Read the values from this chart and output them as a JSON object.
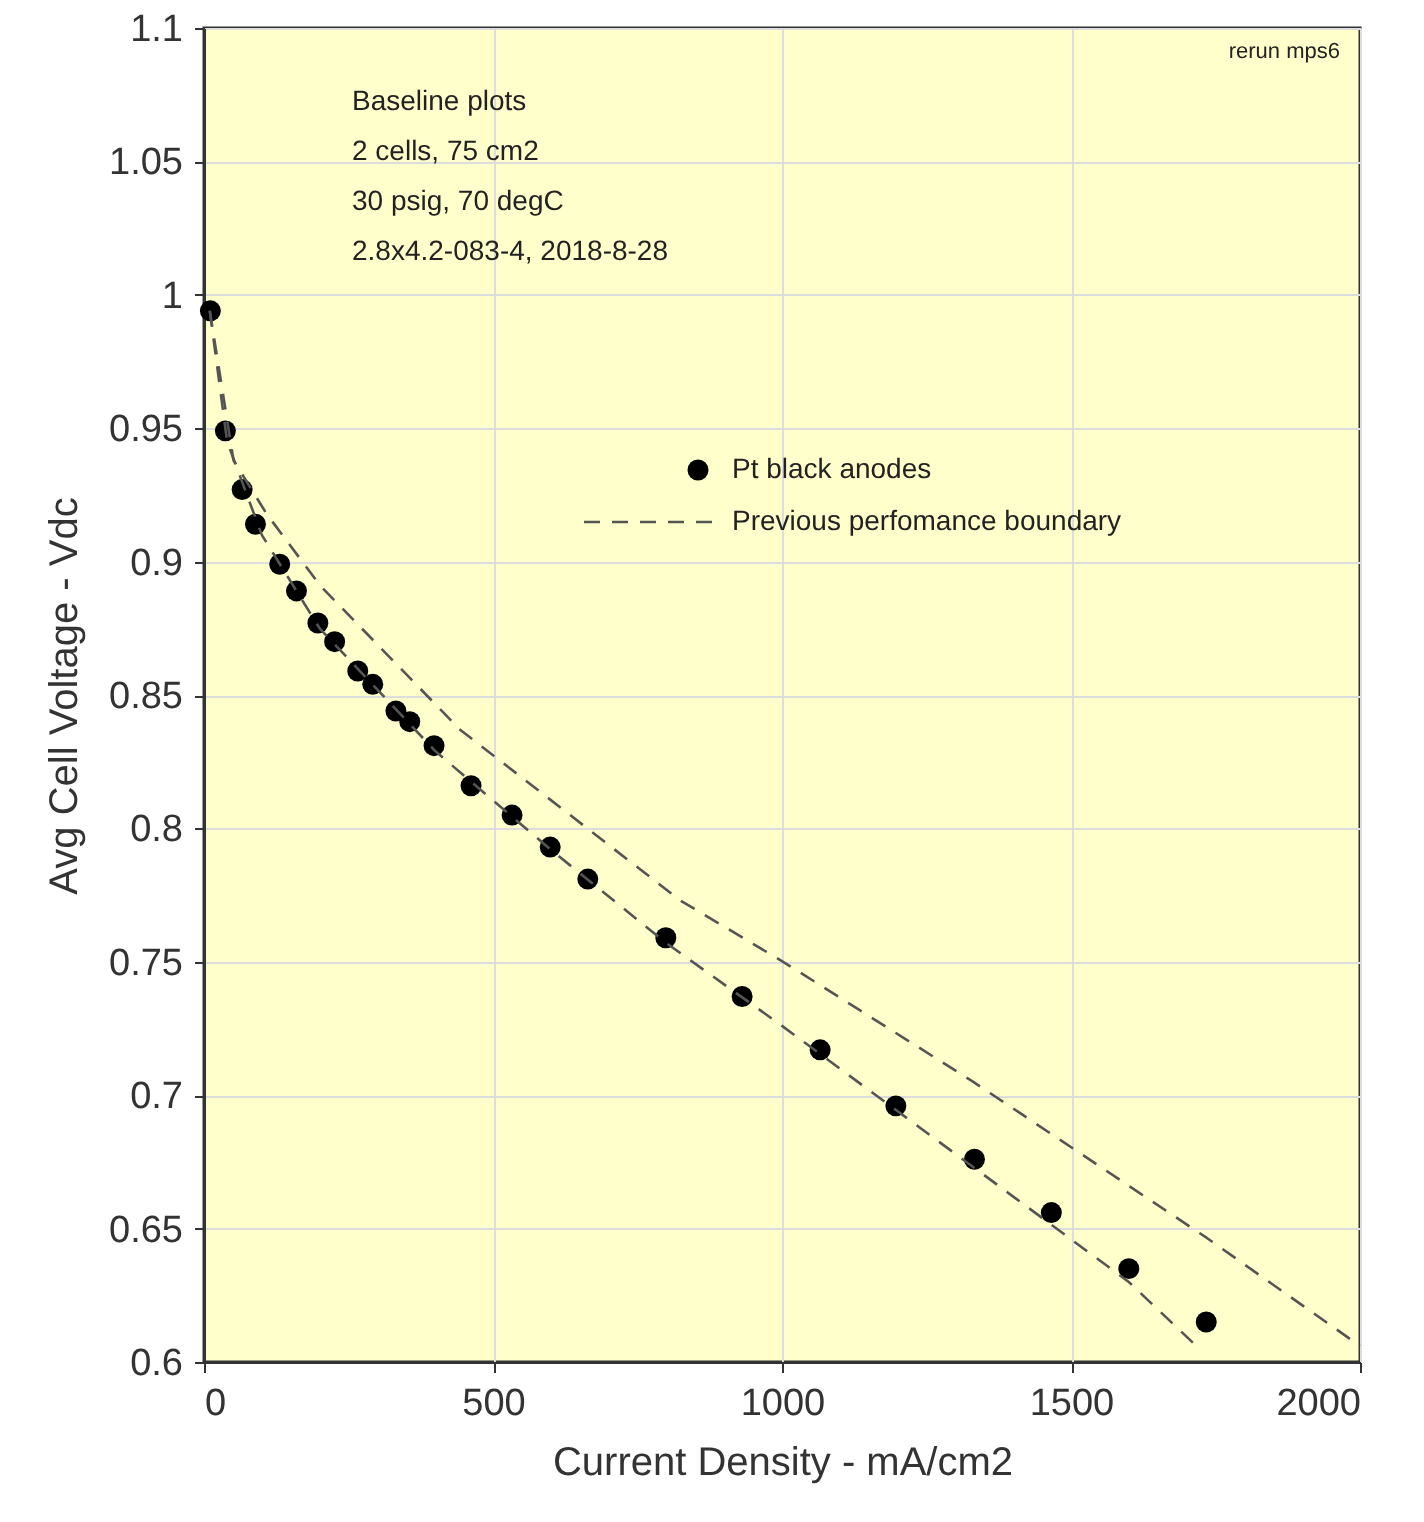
{
  "chart_data": {
    "type": "scatter",
    "xlabel": "Current Density - mA/cm2",
    "ylabel": "Avg Cell Voltage - Vdc",
    "xlim": [
      0,
      2000
    ],
    "xticks": [
      0,
      500,
      1000,
      1500,
      2000
    ],
    "ylim": [
      0.6,
      1.1
    ],
    "yticks": [
      0.6,
      0.65,
      0.7,
      0.75,
      0.8,
      0.85,
      0.9,
      0.95,
      1,
      1.05,
      1.1
    ],
    "grid": true,
    "legend": "top right",
    "annotations": [
      "Baseline plots",
      "2 cells, 75 cm2",
      "30 psig, 70 degC",
      "2.8x4.2-083-4, 2018-8-28",
      "rerun mps6"
    ],
    "series": [
      {
        "name": "Pt black anodes",
        "marker": "circle",
        "color": "#000000",
        "x": [
          11,
          37,
          66,
          89,
          131,
          160,
          197,
          226,
          266,
          292,
          332,
          356,
          398,
          462,
          533,
          599,
          664,
          799,
          931,
          1066,
          1197,
          1333,
          1466,
          1600,
          1734
        ],
        "values": [
          0.994,
          0.949,
          0.927,
          0.914,
          0.899,
          0.889,
          0.877,
          0.87,
          0.859,
          0.854,
          0.844,
          0.84,
          0.831,
          0.816,
          0.805,
          0.793,
          0.781,
          0.759,
          0.737,
          0.717,
          0.696,
          0.676,
          0.656,
          0.635,
          0.615
        ]
      },
      {
        "name": "Previous perfomance boundary",
        "type": "line",
        "line_style": "dashed",
        "color": "#555555",
        "x": [
          10,
          40,
          100,
          200,
          400,
          600,
          800,
          1000,
          1200,
          1400,
          1600,
          1717
        ],
        "values": [
          0.994,
          0.945,
          0.91,
          0.875,
          0.829,
          0.792,
          0.757,
          0.726,
          0.694,
          0.662,
          0.63,
          0.606
        ]
      },
      {
        "type": "line",
        "line_style": "dashed",
        "color": "#555555",
        "x": [
          10,
          51,
          108,
          201,
          443,
          824,
          1002,
          1331,
          1735,
          2000
        ],
        "values": [
          0.994,
          0.938,
          0.918,
          0.891,
          0.837,
          0.773,
          0.75,
          0.705,
          0.6465,
          0.606
        ]
      }
    ]
  }
}
